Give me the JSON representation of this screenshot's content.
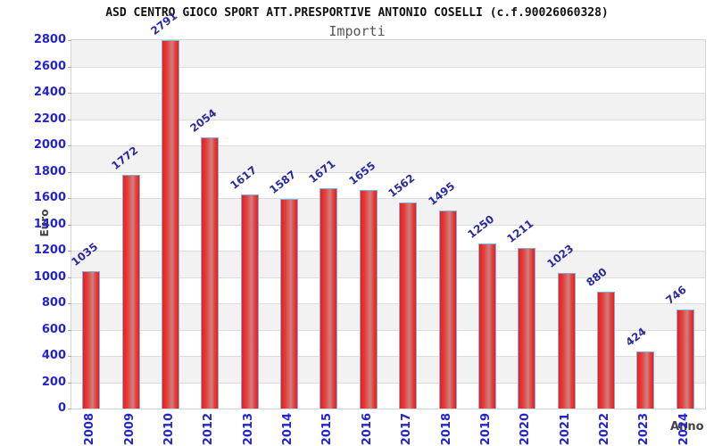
{
  "header": {
    "title": "ASD CENTRO GIOCO SPORT ATT.PRESPORTIVE ANTONIO COSELLI (c.f.90026060328)",
    "subtitle": "Importi"
  },
  "chart_data": {
    "type": "bar",
    "title": "Importi",
    "categories": [
      "2008",
      "2009",
      "2010",
      "2012",
      "2013",
      "2014",
      "2015",
      "2016",
      "2017",
      "2018",
      "2019",
      "2020",
      "2021",
      "2022",
      "2023",
      "2024"
    ],
    "values": [
      1035,
      1772,
      2791,
      2054,
      1617,
      1587,
      1671,
      1655,
      1562,
      1495,
      1250,
      1211,
      1023,
      880,
      424,
      746
    ],
    "xlabel": "Anno",
    "ylabel": "Euro",
    "ylim": [
      0,
      2800
    ],
    "yticks": [
      0,
      200,
      400,
      600,
      800,
      1000,
      1200,
      1400,
      1600,
      1800,
      2000,
      2200,
      2400,
      2600,
      2800
    ],
    "grid": "horizontal alternating bands, gridline every 200",
    "legend": "none",
    "value_labels": "above bars, rotated",
    "colors": {
      "bar_fill": "#ea1f1c",
      "bar_mid": "#e63c3a",
      "bar_highlight": "#c98280",
      "bar_border": "#7ab2e4",
      "axis_text": "#2424cc",
      "value_text": "#2b2b9e",
      "band": "#f2f2f2",
      "gridline": "#dcdcdc",
      "tick": "#aaaaaa",
      "subtitle_text": "#555555",
      "axis_title_text": "#444444"
    }
  }
}
